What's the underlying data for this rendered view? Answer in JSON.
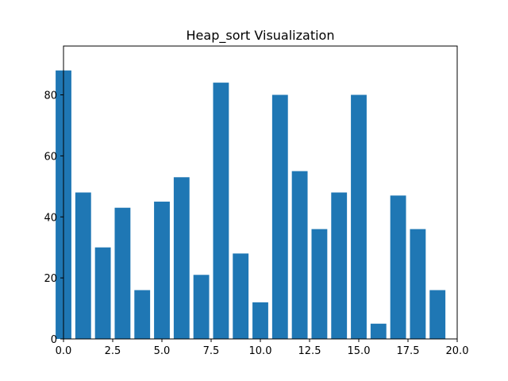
{
  "chart_data": {
    "type": "bar",
    "title": "Heap_sort Visualization",
    "xlabel": "",
    "ylabel": "",
    "x": [
      0,
      1,
      2,
      3,
      4,
      5,
      6,
      7,
      8,
      9,
      10,
      11,
      12,
      13,
      14,
      15,
      16,
      17,
      18,
      19
    ],
    "values": [
      88,
      48,
      30,
      43,
      16,
      45,
      53,
      21,
      84,
      28,
      12,
      80,
      55,
      36,
      48,
      80,
      5,
      47,
      36,
      16
    ],
    "xlim": [
      0,
      20
    ],
    "ylim": [
      0,
      96
    ],
    "xticks": [
      "0.0",
      "2.5",
      "5.0",
      "7.5",
      "10.0",
      "12.5",
      "15.0",
      "17.5",
      "20.0"
    ],
    "yticks": [
      "0",
      "20",
      "40",
      "60",
      "80"
    ],
    "bar_color": "#1f77b4",
    "grid": false,
    "legend": "none"
  }
}
